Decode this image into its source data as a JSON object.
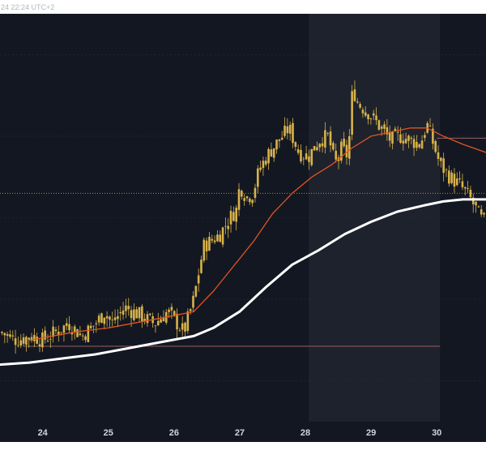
{
  "header": {
    "timestamp_fragment": "24 22:24 UTC+2"
  },
  "colors": {
    "background": "#131722",
    "highlight_band": "#1e222d",
    "candle_up": "#d8b34a",
    "candle_down": "#d8b34a",
    "ma_fast": "#e2541f",
    "ma_slow": "#ffffff",
    "support_line": "#8a5a5a",
    "price_line": "#c8a040",
    "grid": "#2a2e39",
    "axis_text": "#d1d4dc",
    "header_text": "#b2b5be"
  },
  "chart_data": {
    "type": "candlestick",
    "title": "",
    "xlabel": "",
    "ylabel": "",
    "x_tick_labels": [
      "24",
      "25",
      "26",
      "27",
      "28",
      "29",
      "30"
    ],
    "x_ticks_at": [
      24,
      25,
      26,
      27,
      28,
      29,
      30
    ],
    "xlim": [
      23.35,
      30.75
    ],
    "ylim": [
      0,
      100
    ],
    "highlighted_range": [
      28.05,
      30.05
    ],
    "horizontal_levels": [
      {
        "name": "support",
        "value": 18.5,
        "from_x": 23.7,
        "to_x": 30.05
      },
      {
        "name": "price",
        "value": 56.0,
        "from_x": 23.35,
        "to_x": 30.75
      },
      {
        "name": "level-upper",
        "value": 69.5,
        "from_x": 30.0,
        "to_x": 30.75
      }
    ],
    "grid": true,
    "close_path": [
      [
        23.35,
        22
      ],
      [
        23.6,
        20
      ],
      [
        23.85,
        21
      ],
      [
        24.0,
        20
      ],
      [
        24.2,
        22
      ],
      [
        24.4,
        24
      ],
      [
        24.6,
        21
      ],
      [
        24.8,
        24
      ],
      [
        24.95,
        27
      ],
      [
        25.05,
        24
      ],
      [
        25.25,
        28
      ],
      [
        25.5,
        26
      ],
      [
        25.7,
        24
      ],
      [
        25.9,
        27
      ],
      [
        26.0,
        25
      ],
      [
        26.15,
        22
      ],
      [
        26.3,
        30
      ],
      [
        26.45,
        43
      ],
      [
        26.7,
        46
      ],
      [
        26.85,
        50
      ],
      [
        26.95,
        52
      ],
      [
        27.0,
        58
      ],
      [
        27.1,
        55
      ],
      [
        27.2,
        56
      ],
      [
        27.3,
        62
      ],
      [
        27.45,
        66
      ],
      [
        27.6,
        69
      ],
      [
        27.75,
        72
      ],
      [
        27.9,
        66
      ],
      [
        28.05,
        65
      ],
      [
        28.2,
        69
      ],
      [
        28.35,
        70
      ],
      [
        28.45,
        63
      ],
      [
        28.55,
        67
      ],
      [
        28.65,
        65
      ],
      [
        28.72,
        82
      ],
      [
        28.8,
        78
      ],
      [
        28.95,
        76
      ],
      [
        29.1,
        73
      ],
      [
        29.3,
        69
      ],
      [
        29.45,
        70
      ],
      [
        29.6,
        69
      ],
      [
        29.75,
        68
      ],
      [
        29.85,
        73
      ],
      [
        29.95,
        68
      ],
      [
        30.05,
        63
      ],
      [
        30.2,
        60
      ],
      [
        30.35,
        58
      ],
      [
        30.5,
        55
      ],
      [
        30.7,
        49
      ]
    ],
    "series": [
      {
        "name": "",
        "style": "line",
        "color_key": "ma_fast",
        "points": [
          [
            23.8,
            20
          ],
          [
            24.5,
            22
          ],
          [
            25.0,
            23
          ],
          [
            25.5,
            24.5
          ],
          [
            26.0,
            26
          ],
          [
            26.3,
            27
          ],
          [
            26.6,
            32
          ],
          [
            26.9,
            38
          ],
          [
            27.2,
            44
          ],
          [
            27.5,
            51
          ],
          [
            27.8,
            56
          ],
          [
            28.1,
            60
          ],
          [
            28.4,
            63
          ],
          [
            28.7,
            67
          ],
          [
            29.0,
            70
          ],
          [
            29.3,
            71
          ],
          [
            29.6,
            72
          ],
          [
            29.85,
            72
          ],
          [
            30.1,
            70
          ],
          [
            30.4,
            68
          ],
          [
            30.75,
            66
          ]
        ]
      },
      {
        "name": "",
        "style": "line",
        "color_key": "ma_slow",
        "points": [
          [
            23.35,
            14
          ],
          [
            23.8,
            14.5
          ],
          [
            24.3,
            15.5
          ],
          [
            24.8,
            16.5
          ],
          [
            25.3,
            18
          ],
          [
            25.8,
            19.5
          ],
          [
            26.3,
            21
          ],
          [
            26.6,
            23
          ],
          [
            27.0,
            27
          ],
          [
            27.4,
            33
          ],
          [
            27.8,
            38.5
          ],
          [
            28.2,
            42
          ],
          [
            28.6,
            46
          ],
          [
            29.0,
            49
          ],
          [
            29.4,
            51.5
          ],
          [
            29.8,
            53
          ],
          [
            30.1,
            54
          ],
          [
            30.4,
            54.5
          ],
          [
            30.75,
            54.5
          ]
        ]
      }
    ]
  },
  "x_axis": {
    "labels": [
      "24",
      "25",
      "26",
      "27",
      "28",
      "29",
      "30"
    ]
  }
}
